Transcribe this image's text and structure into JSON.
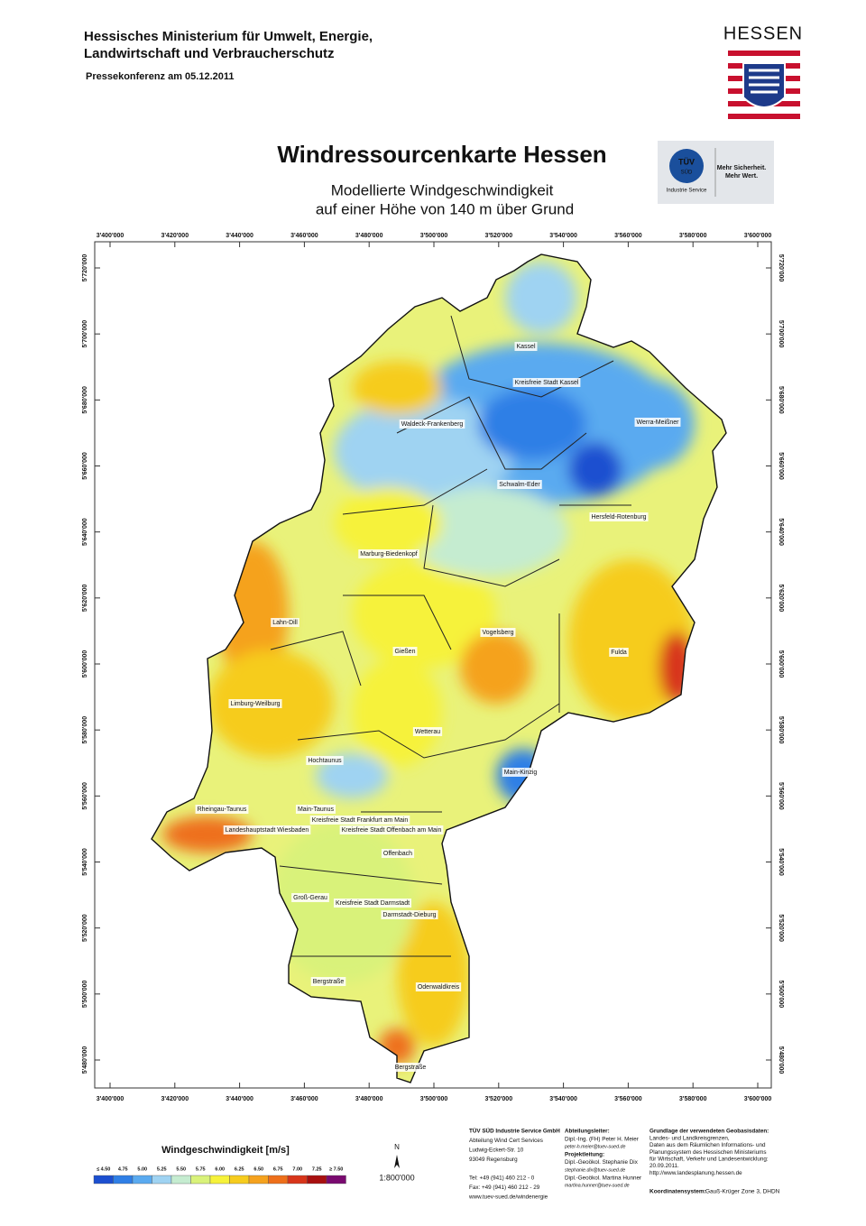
{
  "header": {
    "ministry": [
      "Hessisches Ministerium für Umwelt, Energie,",
      "Landwirtschaft und Verbraucherschutz"
    ],
    "press": "Pressekonferenz am 05.12.2011",
    "logo": "HESSEN"
  },
  "title": "Windressourcenkarte Hessen",
  "subtitle": [
    "Modellierte Windgeschwindigkeit",
    "auf einer Höhe von 140 m über Grund"
  ],
  "tuv_logo": {
    "mark": "TÜV",
    "sub": "SÜD",
    "division": "Industrie Service",
    "slogan": [
      "Mehr Sicherheit.",
      "Mehr Wert."
    ]
  },
  "map": {
    "x_labels": [
      "3'400'000",
      "3'420'000",
      "3'440'000",
      "3'460'000",
      "3'480'000",
      "3'500'000",
      "3'520'000",
      "3'540'000",
      "3'560'000",
      "3'580'000",
      "3'600'000"
    ],
    "y_labels": [
      "5'720'000",
      "5'700'000",
      "5'680'000",
      "5'660'000",
      "5'640'000",
      "5'620'000",
      "5'600'000",
      "5'580'000",
      "5'560'000",
      "5'540'000",
      "5'520'000",
      "5'500'000",
      "5'480'000"
    ],
    "regions": [
      "Kassel",
      "Kreisfreie Stadt Kassel",
      "Waldeck-Frankenberg",
      "Werra-Meißner",
      "Schwalm-Eder",
      "Hersfeld-Rotenburg",
      "Marburg-Biedenkopf",
      "Lahn-Dill",
      "Vogelsberg",
      "Fulda",
      "Gießen",
      "Limburg-Weilburg",
      "Wetterau",
      "Hochtaunus",
      "Main-Kinzig",
      "Rheingau-Taunus",
      "Main-Taunus",
      "Kreisfreie Stadt Frankfurt am Main",
      "Landeshauptstadt Wiesbaden",
      "Kreisfreie Stadt Offenbach am Main",
      "Offenbach",
      "Groß-Gerau",
      "Kreisfreie Stadt Darmstadt",
      "Darmstadt-Dieburg",
      "Bergstraße",
      "Odenwaldkreis",
      "Bergstraße"
    ]
  },
  "legend": {
    "title": "Windgeschwindigkeit [m/s]",
    "items": [
      {
        "label": "≤ 4.50",
        "color": "#1c4fd0"
      },
      {
        "label": "4.75",
        "color": "#2f7fe6"
      },
      {
        "label": "5.00",
        "color": "#5aaaf0"
      },
      {
        "label": "5.25",
        "color": "#9fd3f2"
      },
      {
        "label": "5.50",
        "color": "#c5ecd0"
      },
      {
        "label": "5.75",
        "color": "#d9f27a"
      },
      {
        "label": "6.00",
        "color": "#f6f23a"
      },
      {
        "label": "6.25",
        "color": "#f6cc1e"
      },
      {
        "label": "6.50",
        "color": "#f5a21e"
      },
      {
        "label": "6.75",
        "color": "#ee6f1a"
      },
      {
        "label": "7.00",
        "color": "#d8351a"
      },
      {
        "label": "7.25",
        "color": "#a81010"
      },
      {
        "label": "≥ 7.50",
        "color": "#7a0a70"
      }
    ],
    "north": "N",
    "scale": "1:800'000"
  },
  "footer": {
    "company": [
      "TÜV SÜD Industrie Service GmbH",
      "Abteilung Wind Cert Services",
      "Ludwig-Eckert-Str. 10",
      "93049 Regensburg",
      "Tel:   +49 (941) 460 212 - 0",
      "Fax:  +49 (941) 460 212 - 29",
      "www.tuev-sued.de/windenergie"
    ],
    "contacts": [
      "Abteilungsleiter:",
      "Dipl.-Ing. (FH) Peter H. Meier",
      "peter-h.meier@tuev-sued.de",
      "Projektleitung:",
      "Dipl.-Geoökol. Stephanie Dix",
      "stephanie.dix@tuev-sued.de",
      "Dipl.-Geoökol. Martina Hunner",
      "martina.hunner@tuev-sued.de"
    ],
    "sources": [
      "Grundlage der verwendeten Geobasisdaten:",
      "Landes- und Landkreisgrenzen,",
      "Daten aus dem Räumlichen Informations- und",
      "Planungssystem des Hessischen Ministeriums",
      "für Wirtschaft, Verkehr und Landesentwicklung:",
      "20.09.2011.",
      "http://www.landesplanung.hessen.de"
    ],
    "crs_label": "Koordinatensystem:",
    "crs": "Gauß-Krüger Zone 3, DHDN"
  }
}
